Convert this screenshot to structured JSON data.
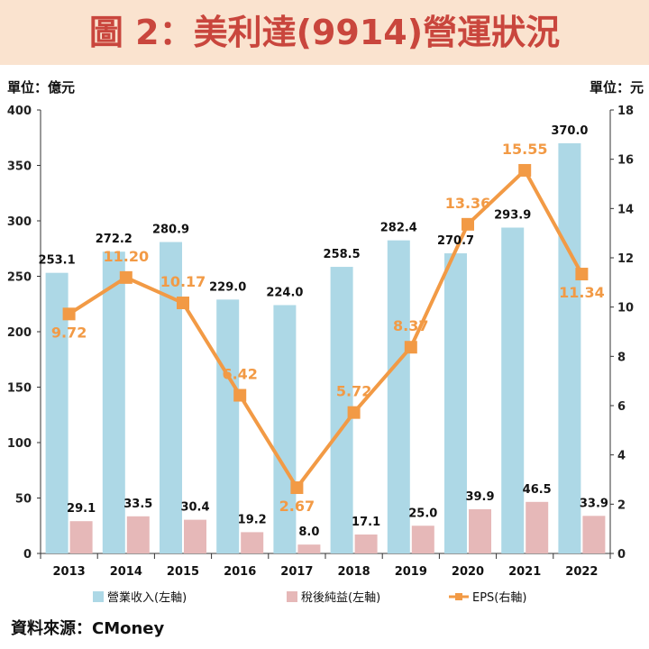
{
  "title": "圖 2：美利達(9914)營運狀況",
  "unit_left": "單位：億元",
  "unit_right": "單位：元",
  "source": "資料來源：CMoney",
  "colors": {
    "revenue": "#add8e6",
    "net_income": "#e6b8b8",
    "eps": "#f29a45",
    "title": "#c9463d",
    "banner": "#fae3cf"
  },
  "chart_data": {
    "type": "bar",
    "categories": [
      "2013",
      "2014",
      "2015",
      "2016",
      "2017",
      "2018",
      "2019",
      "2020",
      "2021",
      "2022"
    ],
    "series": [
      {
        "name": "營業收入(左軸)",
        "type": "bar",
        "axis": "left",
        "values": [
          253.1,
          272.2,
          280.9,
          229.0,
          224.0,
          258.5,
          282.4,
          270.7,
          293.9,
          370.0
        ],
        "labels": [
          "253.1",
          "272.2",
          "280.9",
          "229.0",
          "224.0",
          "258.5",
          "282.4",
          "270.7",
          "293.9",
          "370.0"
        ]
      },
      {
        "name": "稅後純益(左軸)",
        "type": "bar",
        "axis": "left",
        "values": [
          29.1,
          33.5,
          30.4,
          19.2,
          8.0,
          17.1,
          25.0,
          39.9,
          46.5,
          33.9
        ],
        "labels": [
          "29.1",
          "33.5",
          "30.4",
          "19.2",
          "8.0",
          "17.1",
          "25.0",
          "39.9",
          "46.5",
          "33.9"
        ]
      },
      {
        "name": "EPS(右軸)",
        "type": "line",
        "axis": "right",
        "values": [
          9.72,
          11.2,
          10.17,
          6.42,
          2.67,
          5.72,
          8.37,
          13.36,
          15.55,
          11.34
        ],
        "labels": [
          "9.72",
          "11.20",
          "10.17",
          "6.42",
          "2.67",
          "5.72",
          "8.37",
          "13.36",
          "15.55",
          "11.34"
        ]
      }
    ],
    "y_left": {
      "min": 0,
      "max": 400,
      "ticks": [
        "0",
        "50",
        "100",
        "150",
        "200",
        "250",
        "300",
        "350",
        "400"
      ]
    },
    "y_right": {
      "min": 0,
      "max": 18,
      "ticks": [
        "0",
        "2",
        "4",
        "6",
        "8",
        "10",
        "12",
        "14",
        "16",
        "18"
      ]
    },
    "grid": false,
    "legend": "bottom"
  }
}
